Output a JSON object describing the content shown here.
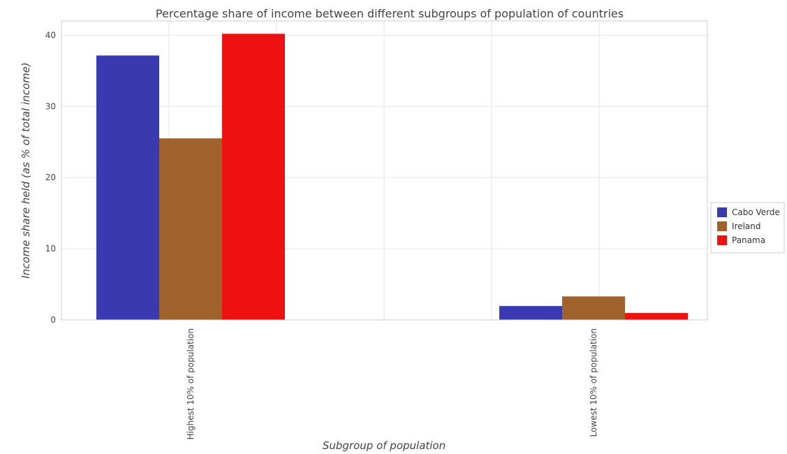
{
  "chart_data": {
    "type": "bar",
    "title": "Percentage share of income between different subgroups of population of countries",
    "xlabel": "Subgroup of population",
    "ylabel": "Income share held (as % of total income)",
    "categories": [
      "Highest 10% of population",
      "Lowest 10% of population"
    ],
    "ylim": [
      0,
      42
    ],
    "yticks": [
      0,
      10,
      20,
      30,
      40
    ],
    "grid": true,
    "legend_position": "right",
    "series": [
      {
        "name": "Cabo Verde",
        "color": "#3a3ab0",
        "values": [
          37.15,
          1.95
        ]
      },
      {
        "name": "Ireland",
        "color": "#a0622d",
        "values": [
          25.5,
          3.3
        ]
      },
      {
        "name": "Panama",
        "color": "#ee1111",
        "values": [
          40.2,
          0.97
        ]
      }
    ]
  }
}
